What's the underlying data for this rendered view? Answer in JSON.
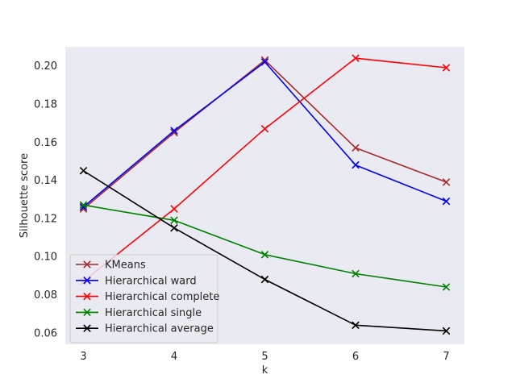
{
  "chart_data": {
    "type": "line",
    "title": "",
    "xlabel": "k",
    "ylabel": "Silhouette score",
    "x": [
      3,
      4,
      5,
      6,
      7
    ],
    "xlim": [
      2.8,
      7.2
    ],
    "ylim": [
      0.054,
      0.21
    ],
    "yticks": [
      0.06,
      0.08,
      0.1,
      0.12,
      0.14,
      0.16,
      0.18,
      0.2
    ],
    "ytick_labels": [
      "0.06",
      "0.08",
      "0.10",
      "0.12",
      "0.14",
      "0.16",
      "0.18",
      "0.20"
    ],
    "xtick_labels": [
      "3",
      "4",
      "5",
      "6",
      "7"
    ],
    "grid": false,
    "legend_position": "lower-left",
    "marker": "x",
    "series": [
      {
        "name": "KMeans",
        "color": "#a52a2a",
        "values": [
          0.125,
          0.165,
          0.203,
          0.157,
          0.139
        ]
      },
      {
        "name": "Hierarchical ward",
        "color": "#0000ff",
        "values": [
          0.126,
          0.166,
          0.202,
          0.148,
          0.129
        ]
      },
      {
        "name": "Hierarchical complete",
        "color": "#ff0000",
        "values": [
          0.087,
          0.125,
          0.167,
          0.204,
          0.199
        ]
      },
      {
        "name": "Hierarchical single",
        "color": "#008000",
        "values": [
          0.127,
          0.119,
          0.101,
          0.091,
          0.084
        ]
      },
      {
        "name": "Hierarchical average",
        "color": "#000000",
        "values": [
          0.145,
          0.115,
          0.088,
          0.064,
          0.061
        ]
      }
    ]
  }
}
